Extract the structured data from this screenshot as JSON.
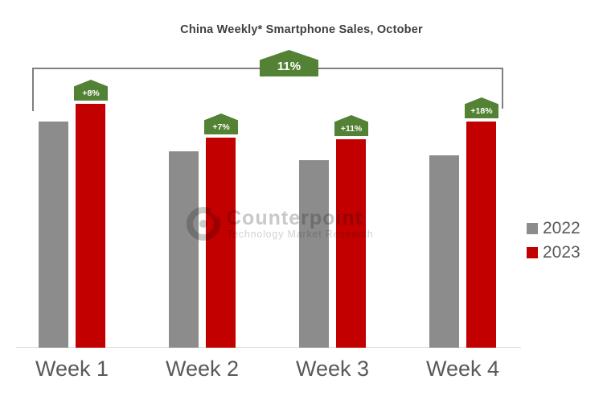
{
  "title": "China Weekly* Smartphone Sales, October",
  "overall_growth_label": "11%",
  "weeks": [
    {
      "label": "Week 1",
      "growth_label": "+8%"
    },
    {
      "label": "Week 2",
      "growth_label": "+7%"
    },
    {
      "label": "Week 3",
      "growth_label": "+11%"
    },
    {
      "label": "Week 4",
      "growth_label": "+18%"
    }
  ],
  "legend": {
    "items": [
      {
        "label": "2022",
        "color": "#8c8c8c"
      },
      {
        "label": "2023",
        "color": "#c20000"
      }
    ]
  },
  "watermark": {
    "brand": "Counterpoint",
    "tagline": "Technology Market Research"
  },
  "colors": {
    "bar_2022": "#8c8c8c",
    "bar_2023": "#c20000",
    "growth_badge_green": "#548235",
    "bracket_gray": "#7f7f7f",
    "baseline_gray": "#d9d9d9",
    "label_gray": "#595959"
  },
  "chart_data": {
    "type": "bar",
    "title": "China Weekly* Smartphone Sales, October",
    "categories": [
      "Week 1",
      "Week 2",
      "Week 3",
      "Week 4"
    ],
    "series": [
      {
        "name": "2022",
        "color": "#8c8c8c",
        "values": [
          100,
          87,
          83,
          85
        ]
      },
      {
        "name": "2023",
        "color": "#c20000",
        "values": [
          108,
          93,
          92,
          100
        ]
      }
    ],
    "units": "indexed sales volume (no value axis shown; Week 1 2022 = 100)",
    "annotations": {
      "per_week_growth_2023_vs_2022": [
        "+8%",
        "+7%",
        "+11%",
        "+18%"
      ],
      "overall_growth_2023_vs_2022": "11%"
    },
    "xlabel": "",
    "ylabel": "",
    "grid": false,
    "legend_position": "right"
  }
}
